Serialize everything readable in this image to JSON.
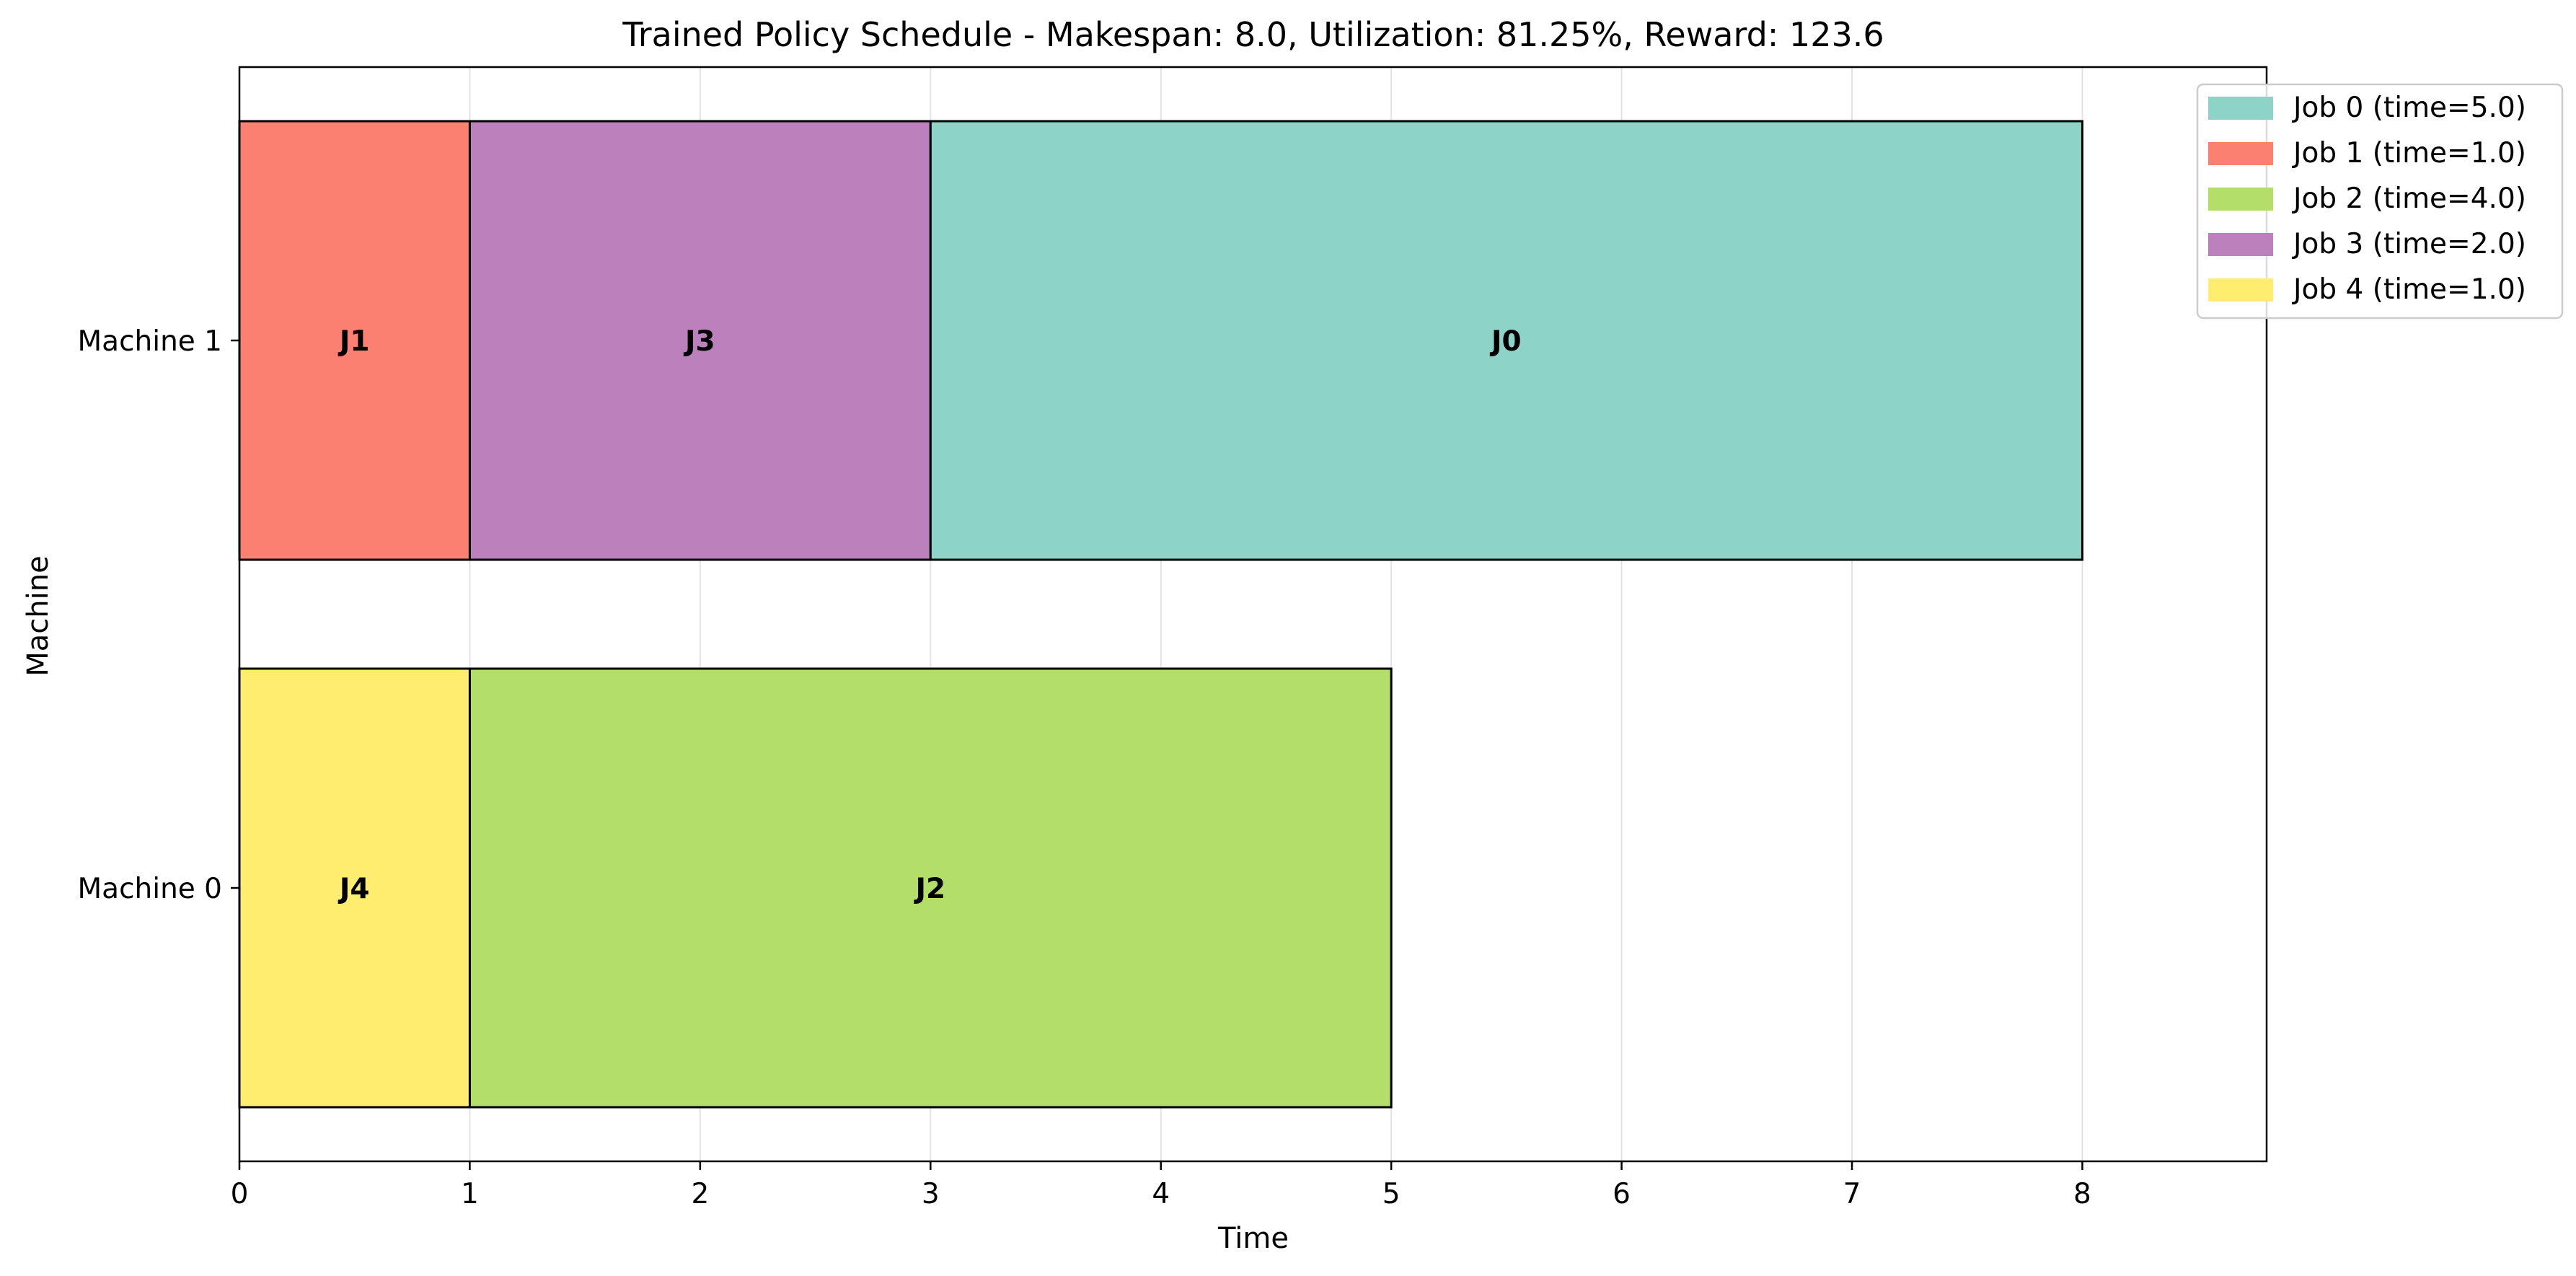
{
  "chart_data": {
    "type": "gantt",
    "title": "Trained Policy Schedule - Makespan: 8.0, Utilization: 81.25%, Reward: 123.6",
    "xlabel": "Time",
    "ylabel": "Machine",
    "xlim": [
      0,
      8.8
    ],
    "xticks": [
      "0",
      "1",
      "2",
      "3",
      "4",
      "5",
      "6",
      "7",
      "8"
    ],
    "grid": "x",
    "legend_position": "top-right",
    "machines": [
      "Machine 1",
      "Machine 0"
    ],
    "tasks": [
      {
        "machine": "Machine 1",
        "job": "J1",
        "start": 0,
        "end": 1,
        "color": "#fb8072"
      },
      {
        "machine": "Machine 1",
        "job": "J3",
        "start": 1,
        "end": 3,
        "color": "#bc80bd"
      },
      {
        "machine": "Machine 1",
        "job": "J0",
        "start": 3,
        "end": 8,
        "color": "#8dd3c7"
      },
      {
        "machine": "Machine 0",
        "job": "J4",
        "start": 0,
        "end": 1,
        "color": "#ffed6f"
      },
      {
        "machine": "Machine 0",
        "job": "J2",
        "start": 1,
        "end": 5,
        "color": "#b3de69"
      }
    ],
    "legend": [
      {
        "label": "Job 0 (time=5.0)",
        "color": "#8dd3c7"
      },
      {
        "label": "Job 1 (time=1.0)",
        "color": "#fb8072"
      },
      {
        "label": "Job 2 (time=4.0)",
        "color": "#b3de69"
      },
      {
        "label": "Job 3 (time=2.0)",
        "color": "#bc80bd"
      },
      {
        "label": "Job 4 (time=1.0)",
        "color": "#ffed6f"
      }
    ]
  }
}
